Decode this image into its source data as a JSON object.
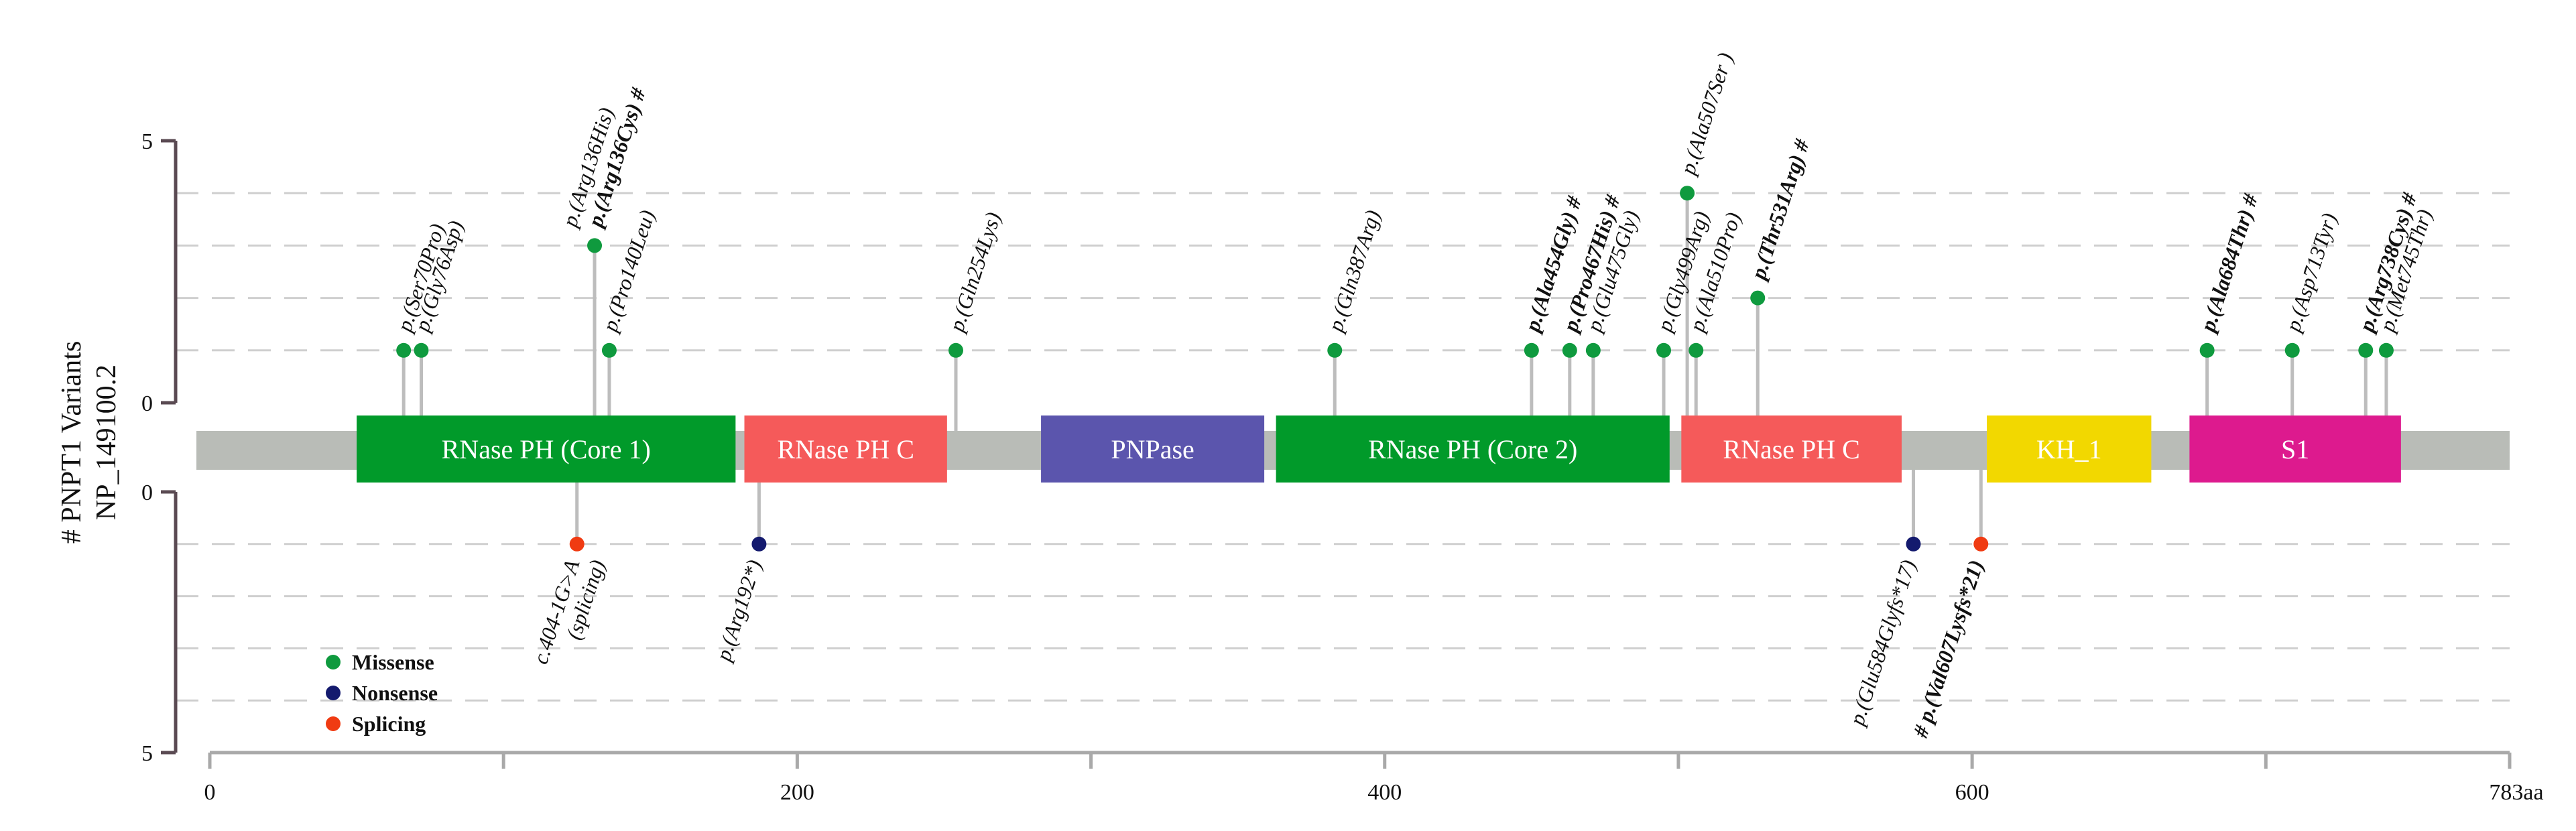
{
  "chart_data": {
    "type": "lollipop",
    "title": "",
    "ylabel_lines": [
      "# PNPT1 Variants",
      "NP_149100.2"
    ],
    "xlabel": "",
    "protein_length": 783,
    "xlim": [
      0,
      783
    ],
    "x_ticks": [
      {
        "value": 0,
        "label": "0"
      },
      {
        "value": 100,
        "label": ""
      },
      {
        "value": 200,
        "label": "200"
      },
      {
        "value": 300,
        "label": ""
      },
      {
        "value": 400,
        "label": "400"
      },
      {
        "value": 500,
        "label": ""
      },
      {
        "value": 600,
        "label": "600"
      },
      {
        "value": 700,
        "label": ""
      },
      {
        "value": 783,
        "label": "783aa"
      }
    ],
    "upper_axis": {
      "ylim": [
        0,
        5
      ],
      "tick_labels": [
        "0",
        "5"
      ]
    },
    "lower_axis": {
      "ylim": [
        0,
        5
      ],
      "tick_labels": [
        "0",
        "5"
      ]
    },
    "grid": "dashed",
    "domains": [
      {
        "name": "RNase PH (Core 1)",
        "start": 50,
        "end": 179,
        "color": "#019a2a"
      },
      {
        "name": "RNase PH C",
        "start": 182,
        "end": 251,
        "color": "#f55a5a"
      },
      {
        "name": "PNPase",
        "start": 283,
        "end": 359,
        "color": "#5b55ad"
      },
      {
        "name": "RNase PH (Core 2)",
        "start": 363,
        "end": 497,
        "color": "#019a2a"
      },
      {
        "name": "RNase PH C",
        "start": 501,
        "end": 576,
        "color": "#f55a5a"
      },
      {
        "name": "KH_1",
        "start": 605,
        "end": 661,
        "color": "#f2d800"
      },
      {
        "name": "S1",
        "start": 674,
        "end": 746,
        "color": "#dd1a8e"
      }
    ],
    "legend": [
      {
        "label": "Missense",
        "color": "#0f9a3e"
      },
      {
        "label": "Nonsense",
        "color": "#141a6e"
      },
      {
        "label": "Splicing",
        "color": "#f03b12"
      }
    ],
    "variants_above": [
      {
        "label": "p.(Ser70Pro)",
        "position": 66,
        "count": 1,
        "type": "Missense",
        "bold": false
      },
      {
        "label": "p.(Gly76Asp)",
        "position": 72,
        "count": 1,
        "type": "Missense",
        "bold": false
      },
      {
        "label": "p.(Arg136His)",
        "position": 131,
        "count": 3,
        "type": "Missense",
        "bold": false
      },
      {
        "label": "p.(Arg136Cys) #",
        "position": 131,
        "count": 3,
        "type": "Missense",
        "bold": true
      },
      {
        "label": "p.(Pro140Leu)",
        "position": 136,
        "count": 1,
        "type": "Missense",
        "bold": false
      },
      {
        "label": "p.(Gln254Lys)",
        "position": 254,
        "count": 1,
        "type": "Missense",
        "bold": false
      },
      {
        "label": "p.(Gln387Arg)",
        "position": 383,
        "count": 1,
        "type": "Missense",
        "bold": false
      },
      {
        "label": "p.(Ala454Gly) #",
        "position": 450,
        "count": 1,
        "type": "Missense",
        "bold": true
      },
      {
        "label": "p.(Pro467His) #",
        "position": 463,
        "count": 1,
        "type": "Missense",
        "bold": true
      },
      {
        "label": "p.(Glu475Gly)",
        "position": 471,
        "count": 1,
        "type": "Missense",
        "bold": false
      },
      {
        "label": "p.(Gly499Arg)",
        "position": 495,
        "count": 1,
        "type": "Missense",
        "bold": false
      },
      {
        "label": "p.(Ala507Ser )",
        "position": 503,
        "count": 4,
        "type": "Missense",
        "bold": false
      },
      {
        "label": "p.(Ala510Pro)",
        "position": 506,
        "count": 1,
        "type": "Missense",
        "bold": false
      },
      {
        "label": "p.(Thr531Arg) #",
        "position": 527,
        "count": 2,
        "type": "Missense",
        "bold": true
      },
      {
        "label": "p.(Ala684Thr) #",
        "position": 680,
        "count": 1,
        "type": "Missense",
        "bold": true
      },
      {
        "label": "p.(Asp713Tyr)",
        "position": 709,
        "count": 1,
        "type": "Missense",
        "bold": false
      },
      {
        "label": "p.(Arg738Cys) #",
        "position": 734,
        "count": 1,
        "type": "Missense",
        "bold": true
      },
      {
        "label": "p.(Met745Thr)",
        "position": 741,
        "count": 1,
        "type": "Missense",
        "bold": false
      }
    ],
    "variants_below": [
      {
        "label": "c.404-1G>A",
        "label2": "(splicing)",
        "position": 125,
        "count": 1,
        "type": "Splicing",
        "bold": false
      },
      {
        "label": "p.(Arg192*)",
        "position": 187,
        "count": 1,
        "type": "Nonsense",
        "bold": false
      },
      {
        "label": "p.(Glu584Glyfs*17)",
        "position": 580,
        "count": 1,
        "type": "Nonsense",
        "bold": false
      },
      {
        "label": "# p.(Val607Lysfs*21)",
        "position": 603,
        "count": 1,
        "type": "Splicing",
        "bold": true
      }
    ]
  }
}
